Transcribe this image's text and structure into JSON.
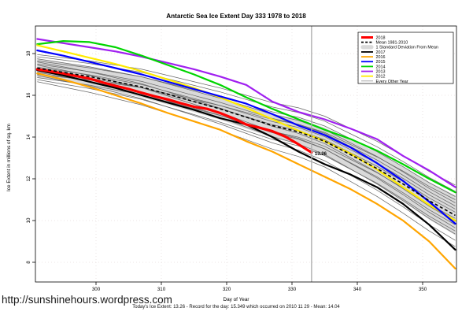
{
  "page": {
    "title": "Antarctic Sea Ice Extent Day 333 1978 to 2018",
    "url_watermark": "http://sunshinehours.wordpress.com",
    "xlabel": "Day of Year",
    "ylabel": "Ice Extent in millions of sq. km",
    "footnote": "Today's Ice Extent: 13.26  - Record for the day: 15.349 which occurred on 2010 11 29  - Mean: 14.04"
  },
  "legend": {
    "items": [
      {
        "label": "2018",
        "swatch": "line",
        "color": "#FF0000",
        "w": 3
      },
      {
        "label": "Mean 1981-2010",
        "swatch": "dash",
        "color": "#000000",
        "w": 1.8
      },
      {
        "label": "1 Standard Deviation From Mean",
        "swatch": "band",
        "color": "#D9D9D9",
        "w": 0
      },
      {
        "label": "2017",
        "swatch": "line",
        "color": "#000000",
        "w": 1.8
      },
      {
        "label": "2016",
        "swatch": "line",
        "color": "#FFA500",
        "w": 1.8
      },
      {
        "label": "2015",
        "swatch": "line",
        "color": "#0000FF",
        "w": 1.8
      },
      {
        "label": "2014",
        "swatch": "line",
        "color": "#00D500",
        "w": 1.8
      },
      {
        "label": "2013",
        "swatch": "line",
        "color": "#A020F0",
        "w": 1.8
      },
      {
        "label": "2012",
        "swatch": "line",
        "color": "#FFEB00",
        "w": 1.8
      },
      {
        "label": "Every Other Year",
        "swatch": "line",
        "color": "#808080",
        "w": 0.7
      }
    ]
  },
  "chart_data": {
    "type": "line",
    "title": "Antarctic Sea Ice Extent Day 333 1978 to 2018",
    "xlabel": "Day of Year",
    "ylabel": "Ice Extent in millions of sq. km",
    "xlim": [
      291,
      355.8
    ],
    "ylim": [
      7.1,
      19.3
    ],
    "xticks": [
      300,
      310,
      320,
      330,
      340,
      350
    ],
    "yticks": [
      8,
      10,
      12,
      14,
      16,
      18
    ],
    "grid": true,
    "legend_position": "top-right",
    "marker_day": 333,
    "annotation": {
      "text": "13.26",
      "day": 333,
      "value": 13.26,
      "color": "#FF0000"
    },
    "stats": {
      "todays_extent": 13.26,
      "record": 15.349,
      "record_date": "2010 11 29",
      "mean": 14.04
    },
    "days": [
      291,
      295,
      299,
      303,
      307,
      311,
      315,
      319,
      323,
      327,
      331,
      335,
      339,
      343,
      347,
      351,
      355
    ],
    "mean": {
      "name": "Mean 1981-2010",
      "color": "#000000",
      "values": [
        17.3,
        17.1,
        16.9,
        16.65,
        16.4,
        16.05,
        15.7,
        15.35,
        14.95,
        14.55,
        14.25,
        13.8,
        13.15,
        12.5,
        11.75,
        10.95,
        10.25
      ]
    },
    "band": {
      "name": "1 Standard Deviation From Mean",
      "color": "#D9D9D9",
      "upper": [
        17.75,
        17.55,
        17.35,
        17.13,
        16.9,
        16.55,
        16.2,
        15.87,
        15.5,
        15.13,
        14.85,
        14.45,
        13.85,
        13.28,
        12.6,
        11.85,
        11.2
      ],
      "lower": [
        16.85,
        16.65,
        16.45,
        16.17,
        15.9,
        15.55,
        15.2,
        14.83,
        14.4,
        13.97,
        13.65,
        13.15,
        12.45,
        11.72,
        10.9,
        10.05,
        9.3
      ]
    },
    "series": [
      {
        "name": "2013",
        "color": "#A020F0",
        "width": 2.2,
        "values": [
          18.7,
          18.5,
          18.3,
          18.1,
          17.85,
          17.55,
          17.25,
          16.9,
          16.5,
          15.7,
          15.2,
          14.85,
          14.4,
          13.9,
          13.1,
          12.4,
          11.6
        ]
      },
      {
        "name": "2014",
        "color": "#00D500",
        "width": 2.2,
        "values": [
          18.45,
          18.6,
          18.55,
          18.3,
          17.9,
          17.45,
          17.0,
          16.5,
          15.9,
          15.35,
          14.85,
          14.35,
          13.9,
          13.35,
          12.7,
          12.0,
          11.35
        ]
      },
      {
        "name": "2012",
        "color": "#FFEB00",
        "width": 2.2,
        "values": [
          18.4,
          18.1,
          17.8,
          17.5,
          17.15,
          16.75,
          16.35,
          15.9,
          15.4,
          14.85,
          14.3,
          13.8,
          13.2,
          12.45,
          11.6,
          10.75,
          10.0
        ]
      },
      {
        "name": "2015",
        "color": "#0000FF",
        "width": 2.2,
        "values": [
          18.15,
          17.9,
          17.6,
          17.3,
          17.0,
          16.65,
          16.3,
          15.95,
          15.6,
          15.1,
          14.55,
          14.1,
          13.5,
          12.75,
          11.9,
          10.9,
          9.85
        ]
      },
      {
        "name": "2016",
        "color": "#FFA500",
        "width": 2.2,
        "values": [
          17.05,
          16.75,
          16.4,
          16.0,
          15.6,
          15.15,
          14.75,
          14.35,
          13.8,
          13.3,
          12.7,
          12.1,
          11.5,
          10.8,
          10.0,
          9.0,
          7.7
        ]
      },
      {
        "name": "2017",
        "color": "#000000",
        "width": 2.2,
        "values": [
          17.2,
          16.95,
          16.65,
          16.35,
          16.0,
          15.65,
          15.3,
          14.9,
          14.6,
          14.0,
          13.3,
          12.7,
          12.2,
          11.6,
          10.8,
          9.8,
          8.6
        ]
      }
    ],
    "series_2018": {
      "name": "2018",
      "color": "#FF0000",
      "width": 3.2,
      "x": [
        291,
        293,
        295,
        297,
        299,
        301,
        303,
        305,
        307,
        309,
        311,
        313,
        315,
        317,
        319,
        321,
        323,
        325,
        327,
        329,
        331,
        333
      ],
      "values": [
        17.25,
        17.15,
        17.05,
        16.92,
        16.8,
        16.62,
        16.45,
        16.3,
        16.12,
        15.95,
        15.8,
        15.62,
        15.45,
        15.35,
        15.15,
        14.9,
        14.6,
        14.45,
        14.28,
        14.02,
        13.65,
        13.26
      ]
    },
    "other_years": {
      "name": "Every Other Year",
      "color": "#696969",
      "width": 0.75,
      "offsets": [
        [
          0.55,
          1.15
        ],
        [
          0.45,
          0.6
        ],
        [
          0.35,
          0.9
        ],
        [
          0.3,
          -0.3
        ],
        [
          0.2,
          0.45
        ],
        [
          0.15,
          -0.6
        ],
        [
          0.05,
          0.3
        ],
        [
          -0.05,
          -0.9
        ],
        [
          -0.1,
          0.15
        ],
        [
          -0.2,
          -0.45
        ],
        [
          -0.3,
          0.75
        ],
        [
          -0.35,
          -1.2
        ],
        [
          -0.45,
          -0.15
        ],
        [
          -0.55,
          -0.75
        ],
        [
          -0.65,
          -1.5
        ],
        [
          0.65,
          1.45
        ]
      ]
    },
    "grid_color": "#E6DEDE",
    "marker_color": "#A9A9A9"
  }
}
